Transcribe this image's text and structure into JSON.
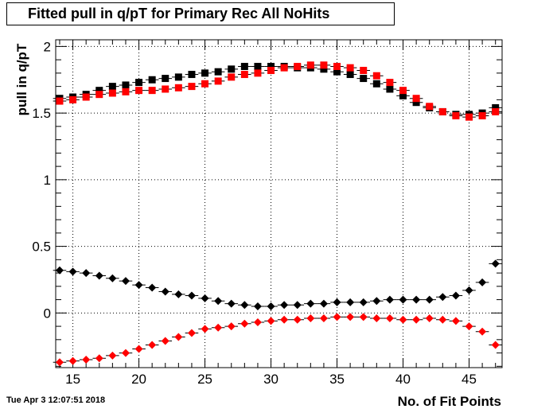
{
  "chart_data": {
    "type": "scatter",
    "title": "Fitted pull in q/pT for Primary Rec All NoHits",
    "xlabel": "No. of Fit Points",
    "ylabel": "pull in q/pT",
    "xlim": [
      13.7,
      47.5
    ],
    "ylim": [
      -0.41,
      2.05
    ],
    "xticks": [
      15,
      20,
      25,
      30,
      35,
      40,
      45
    ],
    "yticks": [
      0,
      0.5,
      1,
      1.5,
      2
    ],
    "xtick_labels": [
      "15",
      "20",
      "25",
      "30",
      "35",
      "40",
      "45"
    ],
    "ytick_labels": [
      "0",
      "0.5",
      "1",
      "1.5",
      "2"
    ],
    "grid": true,
    "x": [
      14,
      15,
      16,
      17,
      18,
      19,
      20,
      21,
      22,
      23,
      24,
      25,
      26,
      27,
      28,
      29,
      30,
      31,
      32,
      33,
      34,
      35,
      36,
      37,
      38,
      39,
      40,
      41,
      42,
      43,
      44,
      45,
      46,
      47
    ],
    "series": [
      {
        "marker": "square",
        "color": "#000000",
        "values": [
          1.61,
          1.62,
          1.64,
          1.67,
          1.7,
          1.71,
          1.73,
          1.75,
          1.76,
          1.77,
          1.79,
          1.8,
          1.81,
          1.83,
          1.85,
          1.85,
          1.85,
          1.85,
          1.84,
          1.84,
          1.83,
          1.81,
          1.79,
          1.76,
          1.72,
          1.68,
          1.63,
          1.58,
          1.54,
          1.51,
          1.49,
          1.49,
          1.5,
          1.54
        ]
      },
      {
        "marker": "square",
        "color": "#ff0000",
        "values": [
          1.59,
          1.6,
          1.62,
          1.64,
          1.65,
          1.66,
          1.67,
          1.67,
          1.68,
          1.69,
          1.7,
          1.72,
          1.74,
          1.77,
          1.79,
          1.8,
          1.82,
          1.84,
          1.85,
          1.86,
          1.86,
          1.85,
          1.84,
          1.82,
          1.78,
          1.73,
          1.67,
          1.61,
          1.55,
          1.51,
          1.48,
          1.47,
          1.48,
          1.51
        ]
      },
      {
        "marker": "diamond",
        "color": "#000000",
        "values": [
          0.32,
          0.31,
          0.3,
          0.28,
          0.26,
          0.24,
          0.21,
          0.19,
          0.16,
          0.14,
          0.13,
          0.11,
          0.09,
          0.07,
          0.06,
          0.05,
          0.05,
          0.06,
          0.06,
          0.07,
          0.07,
          0.08,
          0.08,
          0.08,
          0.09,
          0.1,
          0.1,
          0.1,
          0.1,
          0.12,
          0.13,
          0.17,
          0.23,
          0.37
        ]
      },
      {
        "marker": "diamond",
        "color": "#ff0000",
        "values": [
          -0.37,
          -0.36,
          -0.35,
          -0.34,
          -0.32,
          -0.3,
          -0.27,
          -0.24,
          -0.21,
          -0.18,
          -0.15,
          -0.12,
          -0.11,
          -0.1,
          -0.08,
          -0.07,
          -0.06,
          -0.05,
          -0.05,
          -0.04,
          -0.04,
          -0.03,
          -0.03,
          -0.03,
          -0.04,
          -0.04,
          -0.05,
          -0.05,
          -0.04,
          -0.05,
          -0.06,
          -0.1,
          -0.14,
          -0.24
        ]
      }
    ]
  },
  "footer": {
    "timestamp": "Tue Apr  3 12:07:51 2018"
  }
}
